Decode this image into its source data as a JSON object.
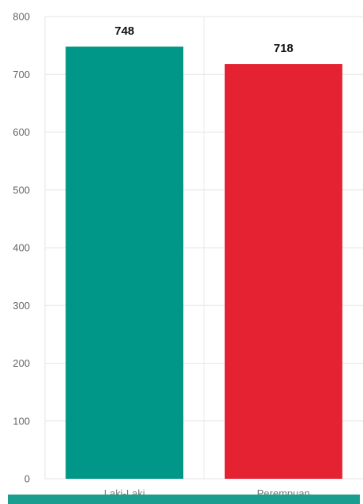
{
  "chart_data": {
    "type": "bar",
    "categories": [
      "Laki-Laki",
      "Perempuan"
    ],
    "values": [
      748,
      718
    ],
    "data_labels": [
      "748",
      "718"
    ],
    "colors": [
      "#009688",
      "#e52232"
    ],
    "ylim": [
      0,
      800
    ],
    "yticks": [
      0,
      100,
      200,
      300,
      400,
      500,
      600,
      700,
      800
    ],
    "grid": true,
    "legend": "none"
  },
  "footer_band": {
    "color": "#1a9e8f"
  }
}
